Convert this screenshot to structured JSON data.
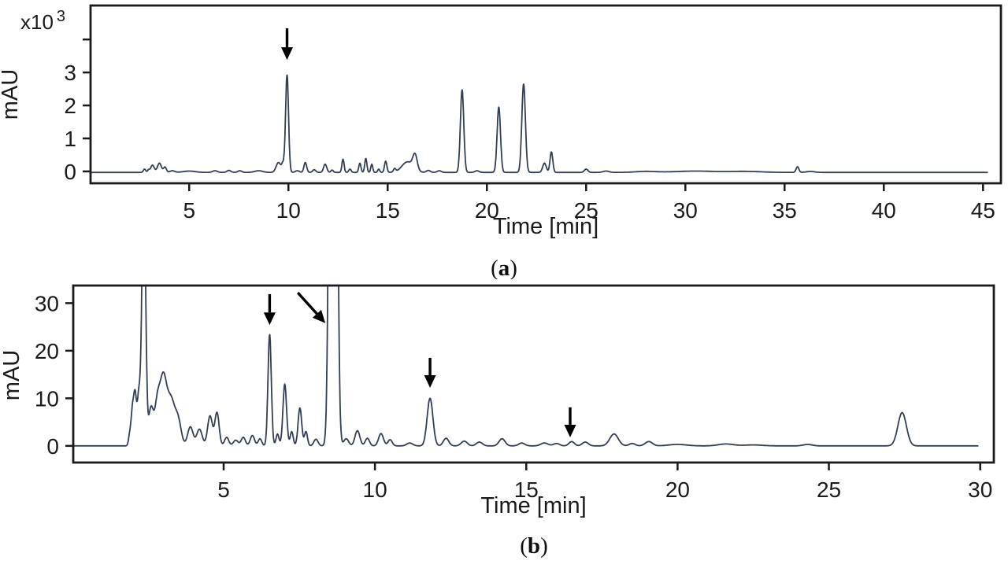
{
  "figure": {
    "background": "#ffffff",
    "axis_color": "#1b1b1b",
    "arrow_color": "#000000"
  },
  "chart_data": [
    {
      "type": "line",
      "panel_label": "(a)",
      "xlabel": "Time [min]",
      "ylabel": "mAU",
      "y_multiplier_base": "x10",
      "y_multiplier_exp": "3",
      "xlim": [
        0.03,
        45.9
      ],
      "ylim": [
        -0.36,
        5.03
      ],
      "xticks": [
        5,
        10,
        15,
        20,
        25,
        30,
        35,
        40,
        45
      ],
      "yticks": [
        {
          "v": 0,
          "label": "0"
        },
        {
          "v": 1,
          "label": "1"
        },
        {
          "v": 2,
          "label": "2"
        },
        {
          "v": 3,
          "label": "3"
        },
        {
          "v": 4,
          "label": ""
        }
      ],
      "grid": false,
      "legend": null,
      "line_color": "#333f54",
      "baseline": -0.03,
      "trace_start": 0.03,
      "trace_end": 45.25,
      "peaks": [
        [
          2.75,
          0.1,
          0.06
        ],
        [
          2.95,
          0.07,
          0.05
        ],
        [
          3.15,
          0.22,
          0.09
        ],
        [
          3.5,
          0.28,
          0.1
        ],
        [
          3.78,
          0.16,
          0.07
        ],
        [
          4.15,
          0.05,
          0.12
        ],
        [
          5.0,
          0.04,
          0.3
        ],
        [
          6.3,
          0.05,
          0.12
        ],
        [
          7.0,
          0.06,
          0.1
        ],
        [
          7.55,
          0.05,
          0.1
        ],
        [
          8.5,
          0.05,
          0.2
        ],
        [
          9.5,
          0.3,
          0.12
        ],
        [
          9.72,
          0.22,
          0.06
        ],
        [
          9.93,
          2.95,
          0.075
        ],
        [
          10.45,
          0.05,
          0.1
        ],
        [
          10.85,
          0.3,
          0.07
        ],
        [
          11.3,
          0.08,
          0.08
        ],
        [
          11.85,
          0.25,
          0.08
        ],
        [
          12.2,
          0.07,
          0.06
        ],
        [
          12.75,
          0.4,
          0.055
        ],
        [
          13.1,
          0.1,
          0.06
        ],
        [
          13.6,
          0.28,
          0.055
        ],
        [
          13.9,
          0.42,
          0.055
        ],
        [
          14.2,
          0.25,
          0.05
        ],
        [
          14.55,
          0.1,
          0.05
        ],
        [
          14.9,
          0.34,
          0.06
        ],
        [
          15.35,
          0.1,
          0.06
        ],
        [
          16.0,
          0.32,
          0.28
        ],
        [
          16.38,
          0.45,
          0.11
        ],
        [
          17.05,
          0.06,
          0.1
        ],
        [
          17.6,
          0.05,
          0.1
        ],
        [
          18.75,
          2.5,
          0.085
        ],
        [
          19.5,
          0.05,
          0.1
        ],
        [
          20.6,
          1.98,
          0.085
        ],
        [
          21.85,
          2.68,
          0.09
        ],
        [
          22.9,
          0.28,
          0.09
        ],
        [
          23.25,
          0.62,
          0.07
        ],
        [
          25.0,
          0.1,
          0.09
        ],
        [
          26.0,
          0.04,
          0.15
        ],
        [
          28.0,
          0.03,
          0.5
        ],
        [
          30.5,
          0.04,
          1.0
        ],
        [
          33.0,
          0.03,
          0.8
        ],
        [
          35.65,
          0.17,
          0.07
        ],
        [
          36.3,
          0.03,
          0.2
        ]
      ],
      "arrows": [
        {
          "x1": 9.93,
          "y1": 4.34,
          "x2": 9.93,
          "y2": 3.38
        }
      ]
    },
    {
      "type": "line",
      "panel_label": "(b)",
      "xlabel": "Time [min]",
      "ylabel": "mAU",
      "y_multiplier_base": "",
      "y_multiplier_exp": "",
      "xlim": [
        0.03,
        30.45
      ],
      "ylim": [
        -3.5,
        33.7
      ],
      "xticks": [
        5,
        10,
        15,
        20,
        25,
        30
      ],
      "yticks": [
        {
          "v": 0,
          "label": "0"
        },
        {
          "v": 10,
          "label": "10"
        },
        {
          "v": 20,
          "label": "20"
        },
        {
          "v": 30,
          "label": "30"
        }
      ],
      "grid": false,
      "legend": null,
      "line_color": "#333f54",
      "baseline": 0,
      "trace_start": 0.03,
      "trace_end": 29.95,
      "peaks": [
        [
          1.9,
          2.5,
          0.04
        ],
        [
          1.98,
          6.0,
          0.04
        ],
        [
          2.07,
          11.0,
          0.05
        ],
        [
          2.2,
          10.5,
          0.05
        ],
        [
          2.36,
          58.0,
          0.06
        ],
        [
          2.6,
          8.0,
          0.08
        ],
        [
          2.8,
          7.0,
          0.08
        ],
        [
          3.0,
          14.5,
          0.12
        ],
        [
          3.27,
          9.0,
          0.12
        ],
        [
          3.5,
          5.0,
          0.1
        ],
        [
          3.9,
          4.0,
          0.09
        ],
        [
          4.2,
          3.5,
          0.09
        ],
        [
          4.55,
          6.3,
          0.08
        ],
        [
          4.78,
          7.0,
          0.07
        ],
        [
          5.1,
          1.8,
          0.07
        ],
        [
          5.4,
          1.2,
          0.08
        ],
        [
          5.65,
          1.8,
          0.07
        ],
        [
          5.95,
          2.2,
          0.07
        ],
        [
          6.2,
          1.5,
          0.06
        ],
        [
          6.52,
          23.5,
          0.055
        ],
        [
          6.78,
          2.5,
          0.05
        ],
        [
          7.02,
          13.0,
          0.06
        ],
        [
          7.25,
          3.0,
          0.05
        ],
        [
          7.52,
          8.0,
          0.06
        ],
        [
          7.72,
          3.0,
          0.05
        ],
        [
          8.05,
          1.4,
          0.07
        ],
        [
          8.62,
          320.0,
          0.085
        ],
        [
          9.05,
          1.5,
          0.08
        ],
        [
          9.42,
          3.2,
          0.08
        ],
        [
          9.75,
          1.6,
          0.07
        ],
        [
          10.2,
          2.6,
          0.08
        ],
        [
          10.5,
          1.3,
          0.07
        ],
        [
          11.15,
          0.6,
          0.1
        ],
        [
          11.82,
          10.0,
          0.095
        ],
        [
          12.35,
          1.6,
          0.09
        ],
        [
          12.95,
          1.0,
          0.1
        ],
        [
          13.45,
          0.8,
          0.1
        ],
        [
          14.2,
          1.5,
          0.1
        ],
        [
          14.85,
          0.6,
          0.1
        ],
        [
          15.6,
          0.6,
          0.12
        ],
        [
          16.0,
          0.5,
          0.1
        ],
        [
          16.5,
          0.9,
          0.09
        ],
        [
          16.95,
          0.8,
          0.1
        ],
        [
          17.9,
          2.5,
          0.14
        ],
        [
          18.5,
          0.5,
          0.1
        ],
        [
          19.05,
          0.9,
          0.12
        ],
        [
          20.0,
          0.3,
          0.3
        ],
        [
          21.6,
          0.4,
          0.25
        ],
        [
          22.5,
          0.2,
          0.3
        ],
        [
          24.3,
          0.3,
          0.15
        ],
        [
          27.42,
          7.0,
          0.14
        ]
      ],
      "arrows": [
        {
          "x1": 6.52,
          "y1": 31.9,
          "x2": 6.52,
          "y2": 25.4
        },
        {
          "x1": 7.45,
          "y1": 32.2,
          "x2": 8.36,
          "y2": 25.8
        },
        {
          "x1": 11.82,
          "y1": 18.5,
          "x2": 11.82,
          "y2": 12.2
        },
        {
          "x1": 16.45,
          "y1": 8.1,
          "x2": 16.45,
          "y2": 1.8
        }
      ]
    }
  ]
}
